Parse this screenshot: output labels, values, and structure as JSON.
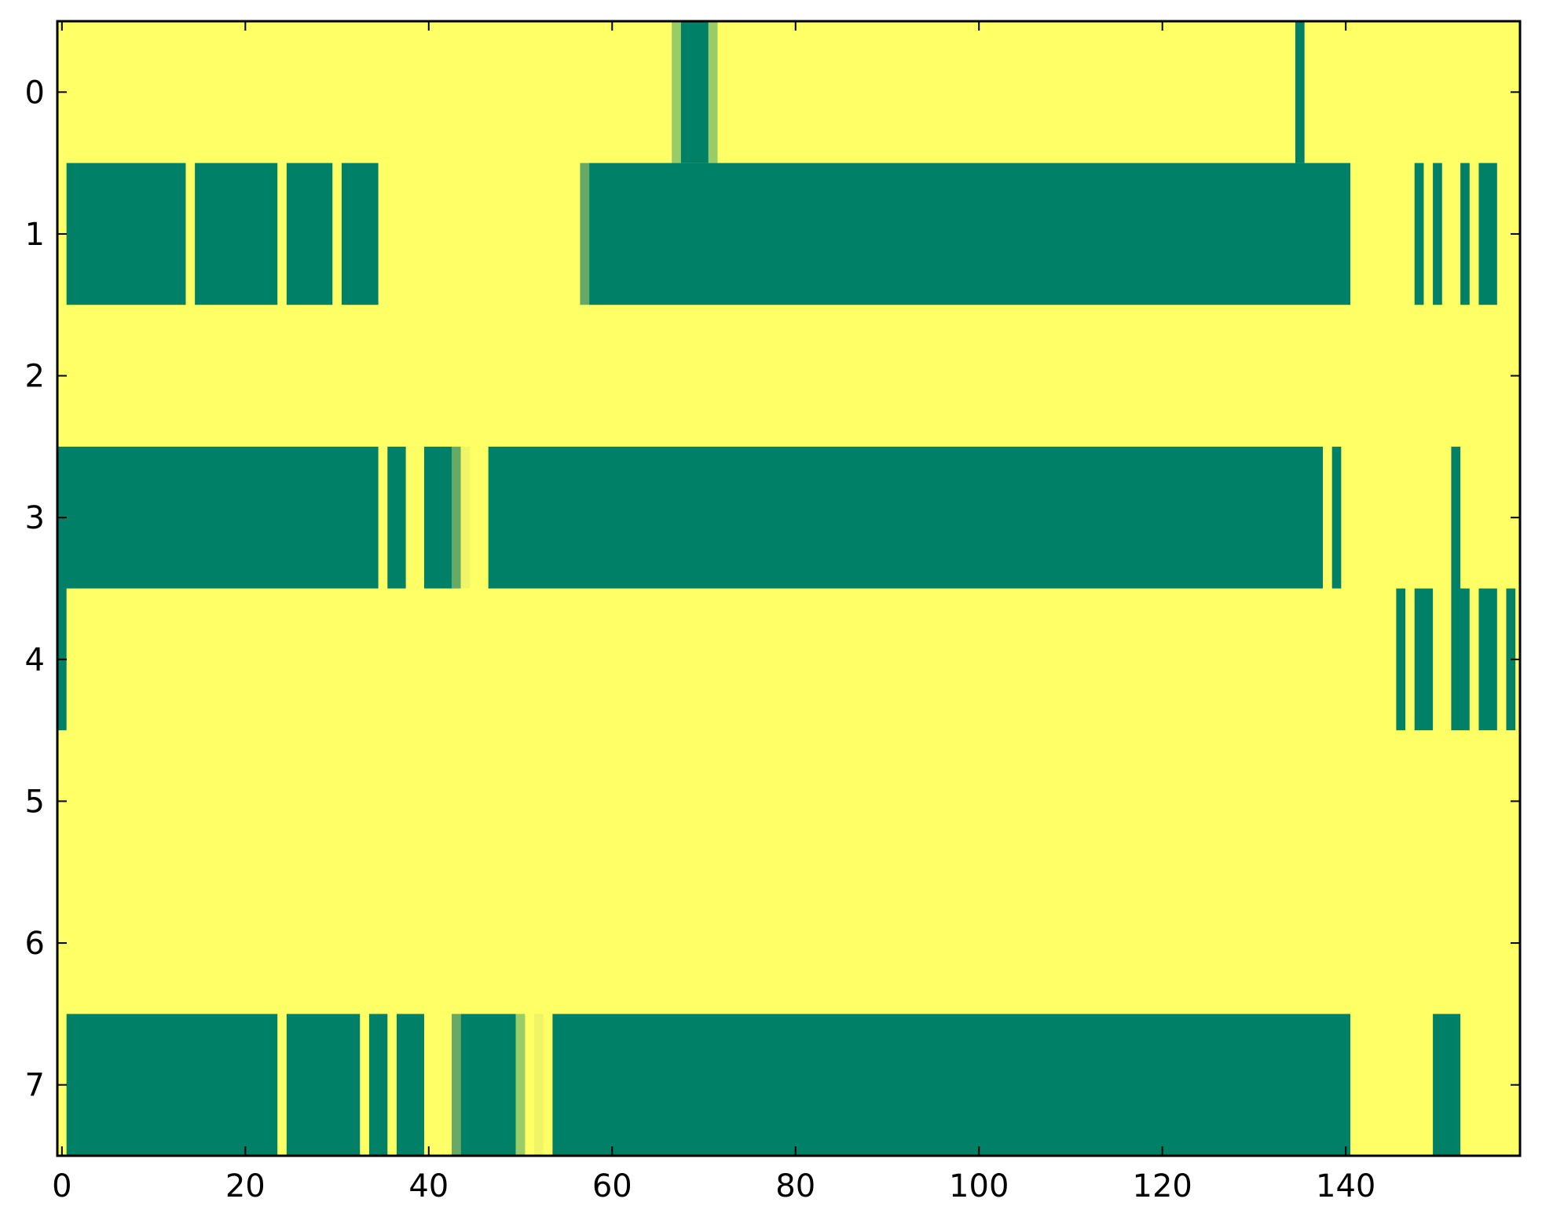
{
  "chart_data": {
    "type": "heatmap",
    "title": "",
    "xlabel": "",
    "ylabel": "",
    "xlim": [
      -0.5,
      159
    ],
    "ylim": [
      7.5,
      -0.5
    ],
    "x_ticks": [
      0,
      20,
      40,
      60,
      80,
      100,
      120,
      140
    ],
    "y_ticks": [
      0,
      1,
      2,
      3,
      4,
      5,
      6,
      7
    ],
    "grid": false,
    "colorscale": {
      "0": "#ffff66",
      "0.2": "#f0f566",
      "0.5": "#99cc66",
      "0.7": "#66aa66",
      "1": "#008066"
    },
    "background_value": 0,
    "note_values": "cell value 0 (yellow) to 1 (teal); rows list column spans [start, end] inclusive with value",
    "rows": [
      {
        "row": 0,
        "spans": [
          [
            67,
            67,
            0.5
          ],
          [
            68,
            70,
            1
          ],
          [
            71,
            71,
            0.5
          ],
          [
            135,
            135,
            1
          ]
        ]
      },
      {
        "row": 1,
        "spans": [
          [
            1,
            13,
            1
          ],
          [
            15,
            23,
            1
          ],
          [
            25,
            29,
            1
          ],
          [
            31,
            34,
            1
          ],
          [
            57,
            57,
            0.7
          ],
          [
            58,
            140,
            1
          ],
          [
            148,
            148,
            1
          ],
          [
            150,
            150,
            1
          ],
          [
            153,
            153,
            1
          ],
          [
            155,
            156,
            1
          ]
        ]
      },
      {
        "row": 2,
        "spans": []
      },
      {
        "row": 3,
        "spans": [
          [
            0,
            34,
            1
          ],
          [
            36,
            37,
            1
          ],
          [
            40,
            42,
            1
          ],
          [
            43,
            43,
            0.7
          ],
          [
            44,
            44,
            0.2
          ],
          [
            47,
            137,
            1
          ],
          [
            139,
            139,
            1
          ],
          [
            152,
            152,
            1
          ]
        ]
      },
      {
        "row": 4,
        "spans": [
          [
            0,
            0,
            1
          ],
          [
            146,
            146,
            1
          ],
          [
            148,
            149,
            1
          ],
          [
            152,
            153,
            1
          ],
          [
            155,
            156,
            1
          ],
          [
            158,
            158,
            1
          ]
        ]
      },
      {
        "row": 5,
        "spans": []
      },
      {
        "row": 6,
        "spans": []
      },
      {
        "row": 7,
        "spans": [
          [
            1,
            23,
            1
          ],
          [
            25,
            32,
            1
          ],
          [
            34,
            35,
            1
          ],
          [
            37,
            39,
            1
          ],
          [
            43,
            43,
            0.7
          ],
          [
            44,
            49,
            1
          ],
          [
            50,
            50,
            0.5
          ],
          [
            52,
            52,
            0.2
          ],
          [
            54,
            140,
            1
          ],
          [
            150,
            152,
            1
          ]
        ]
      }
    ]
  }
}
